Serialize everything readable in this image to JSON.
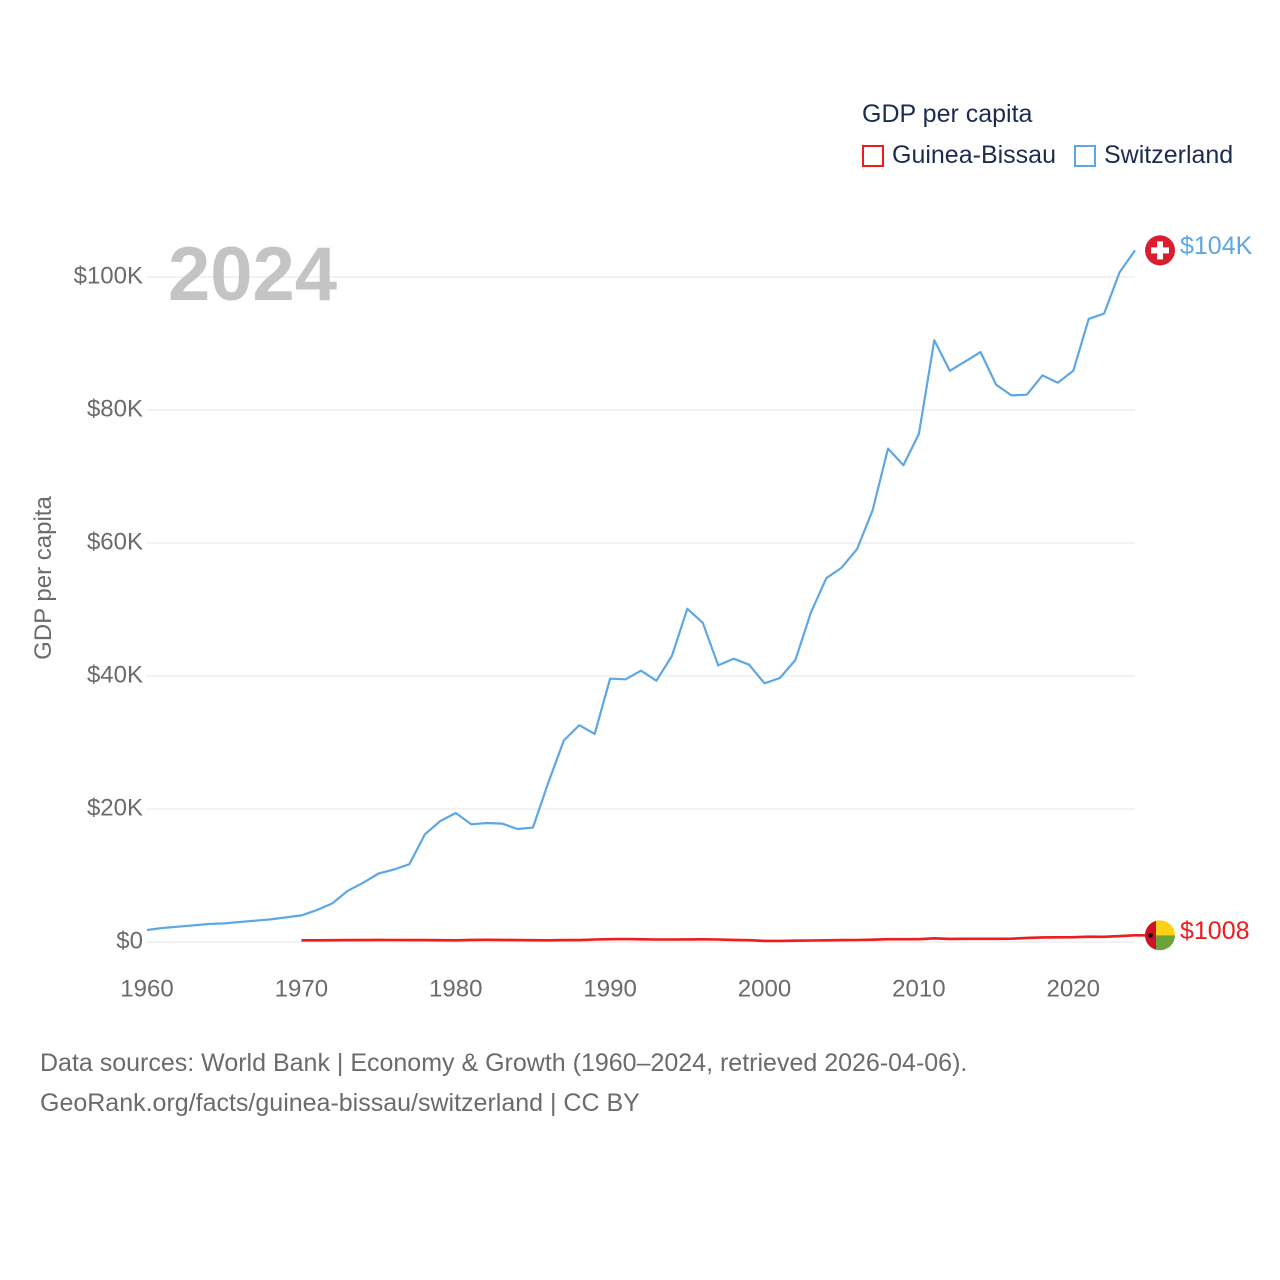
{
  "legend": {
    "title": "GDP per capita",
    "items": [
      {
        "label": "Guinea-Bissau",
        "color": "#ee1c1c"
      },
      {
        "label": "Switzerland",
        "color": "#5ea7e2"
      }
    ]
  },
  "footer": {
    "line1": "Data sources: World Bank | Economy & Growth (1960–2024, retrieved 2026-04-06).",
    "line2": "GeoRank.org/facts/guinea-bissau/switzerland | CC BY"
  },
  "chart_data": {
    "type": "line",
    "title": "GDP per capita",
    "current_year_label": "2024",
    "xlabel": "",
    "ylabel": "GDP per capita",
    "xlim": [
      1960,
      2024
    ],
    "ylim": [
      0,
      110000
    ],
    "x_ticks": [
      1960,
      1970,
      1980,
      1990,
      2000,
      2010,
      2020
    ],
    "x_tick_labels": [
      "1960",
      "1970",
      "1980",
      "1990",
      "2000",
      "2010",
      "2020"
    ],
    "y_ticks": [
      0,
      20000,
      40000,
      60000,
      80000,
      100000
    ],
    "y_tick_labels": [
      "$0",
      "$20K",
      "$40K",
      "$60K",
      "$80K",
      "$100K"
    ],
    "grid": true,
    "series": [
      {
        "name": "Switzerland",
        "color": "#5ea7e2",
        "end_label": "$104K",
        "x": [
          1960,
          1961,
          1962,
          1963,
          1964,
          1965,
          1966,
          1967,
          1968,
          1969,
          1970,
          1971,
          1972,
          1973,
          1974,
          1975,
          1976,
          1977,
          1978,
          1979,
          1980,
          1981,
          1982,
          1983,
          1984,
          1985,
          1986,
          1987,
          1988,
          1989,
          1990,
          1991,
          1992,
          1993,
          1994,
          1995,
          1996,
          1997,
          1998,
          1999,
          2000,
          2001,
          2002,
          2003,
          2004,
          2005,
          2006,
          2007,
          2008,
          2009,
          2010,
          2011,
          2012,
          2013,
          2014,
          2015,
          2016,
          2017,
          2018,
          2019,
          2020,
          2021,
          2022,
          2023,
          2024
        ],
        "values": [
          1800,
          2100,
          2300,
          2500,
          2700,
          2800,
          3000,
          3200,
          3400,
          3700,
          4000,
          4800,
          5800,
          7700,
          8900,
          10300,
          10900,
          11700,
          16200,
          18200,
          19400,
          17700,
          17900,
          17800,
          17000,
          17200,
          24000,
          30300,
          32600,
          31300,
          39600,
          39500,
          40800,
          39300,
          43000,
          50100,
          48000,
          41600,
          42600,
          41700,
          38900,
          39700,
          42400,
          49500,
          54700,
          56300,
          59100,
          64900,
          74200,
          71700,
          76400,
          90500,
          85900,
          87300,
          88700,
          83800,
          82200,
          82300,
          85200,
          84100,
          85900,
          93700,
          94500,
          100700,
          104000
        ]
      },
      {
        "name": "Guinea-Bissau",
        "color": "#ee1c1c",
        "end_label": "$1008",
        "x": [
          1970,
          1971,
          1972,
          1973,
          1974,
          1975,
          1976,
          1977,
          1978,
          1979,
          1980,
          1981,
          1982,
          1983,
          1984,
          1985,
          1986,
          1987,
          1988,
          1989,
          1990,
          1991,
          1992,
          1993,
          1994,
          1995,
          1996,
          1997,
          1998,
          1999,
          2000,
          2001,
          2002,
          2003,
          2004,
          2005,
          2006,
          2007,
          2008,
          2009,
          2010,
          2011,
          2012,
          2013,
          2014,
          2015,
          2016,
          2017,
          2018,
          2019,
          2020,
          2021,
          2022,
          2023,
          2024
        ],
        "values": [
          250,
          260,
          270,
          280,
          290,
          310,
          300,
          290,
          280,
          270,
          250,
          320,
          330,
          310,
          280,
          270,
          260,
          300,
          290,
          370,
          420,
          450,
          400,
          370,
          380,
          390,
          400,
          380,
          310,
          270,
          160,
          170,
          200,
          230,
          260,
          290,
          300,
          340,
          420,
          420,
          420,
          560,
          470,
          480,
          480,
          480,
          500,
          610,
          690,
          700,
          720,
          800,
          780,
          880,
          1008
        ]
      }
    ]
  }
}
